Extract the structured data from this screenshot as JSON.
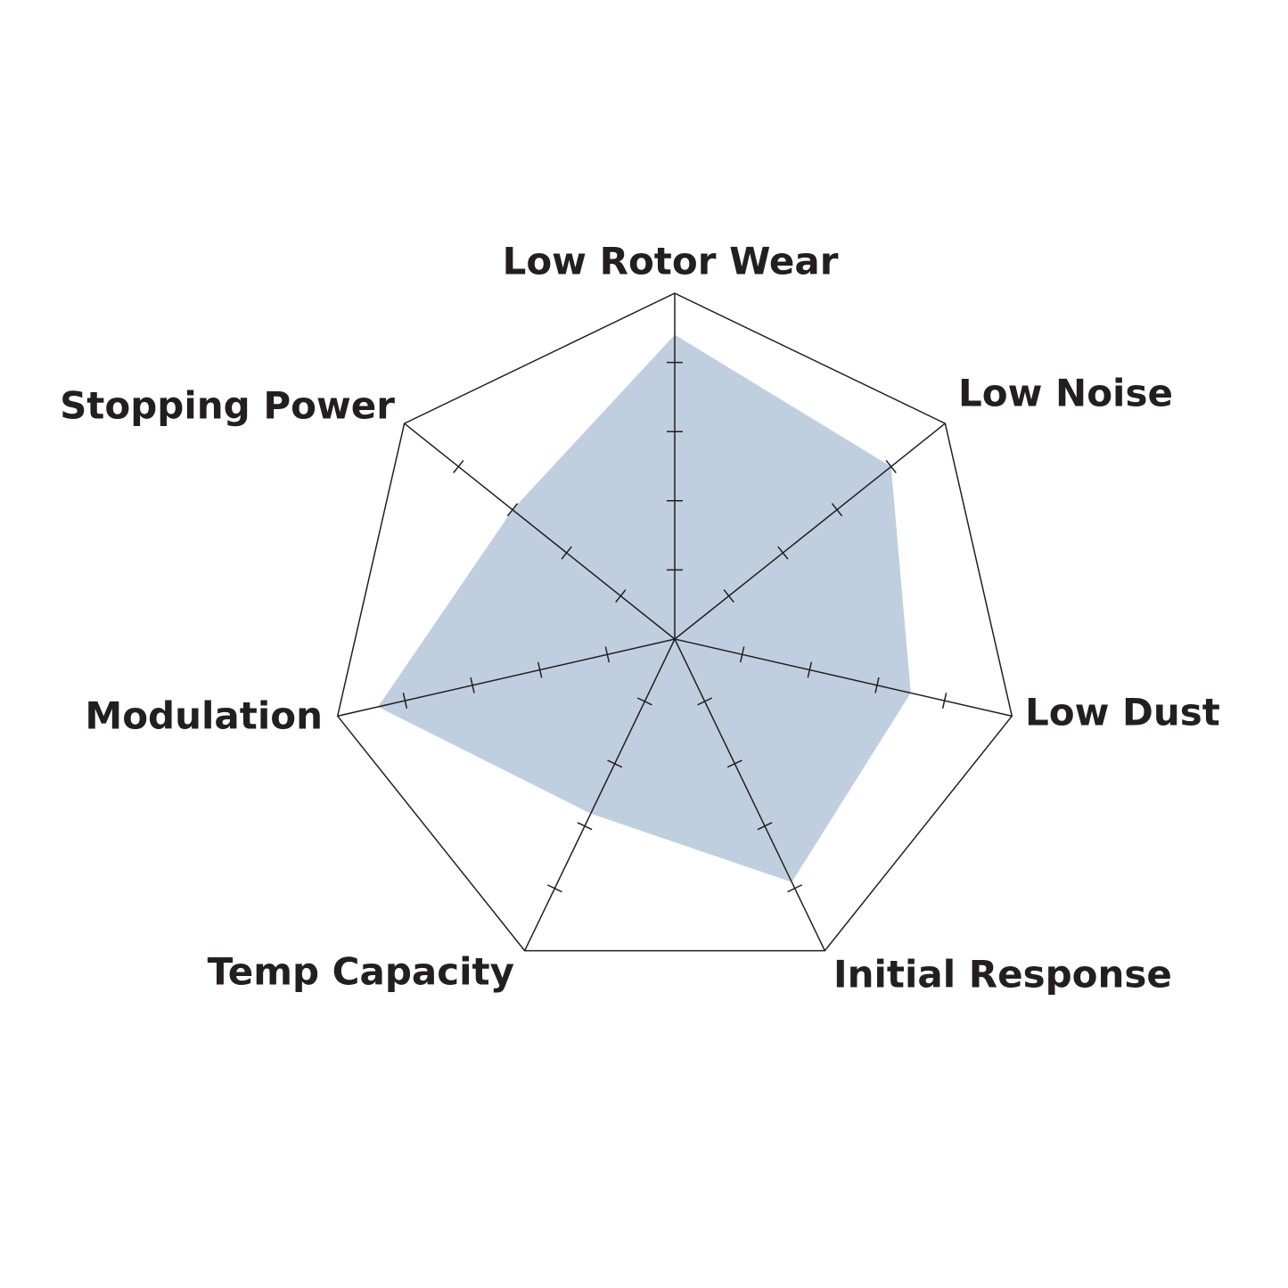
{
  "chart_data": {
    "type": "radar",
    "categories": [
      "Low Rotor Wear",
      "Low Noise",
      "Low Dust",
      "Initial Response",
      "Temp Capacity",
      "Modulation",
      "Stopping Power"
    ],
    "values": [
      4.4,
      4.0,
      3.5,
      3.9,
      2.8,
      4.4,
      3.0
    ],
    "color": "#c0cfdf",
    "rlim": [
      0,
      5
    ],
    "rticks": [
      1,
      2,
      3,
      4
    ]
  }
}
